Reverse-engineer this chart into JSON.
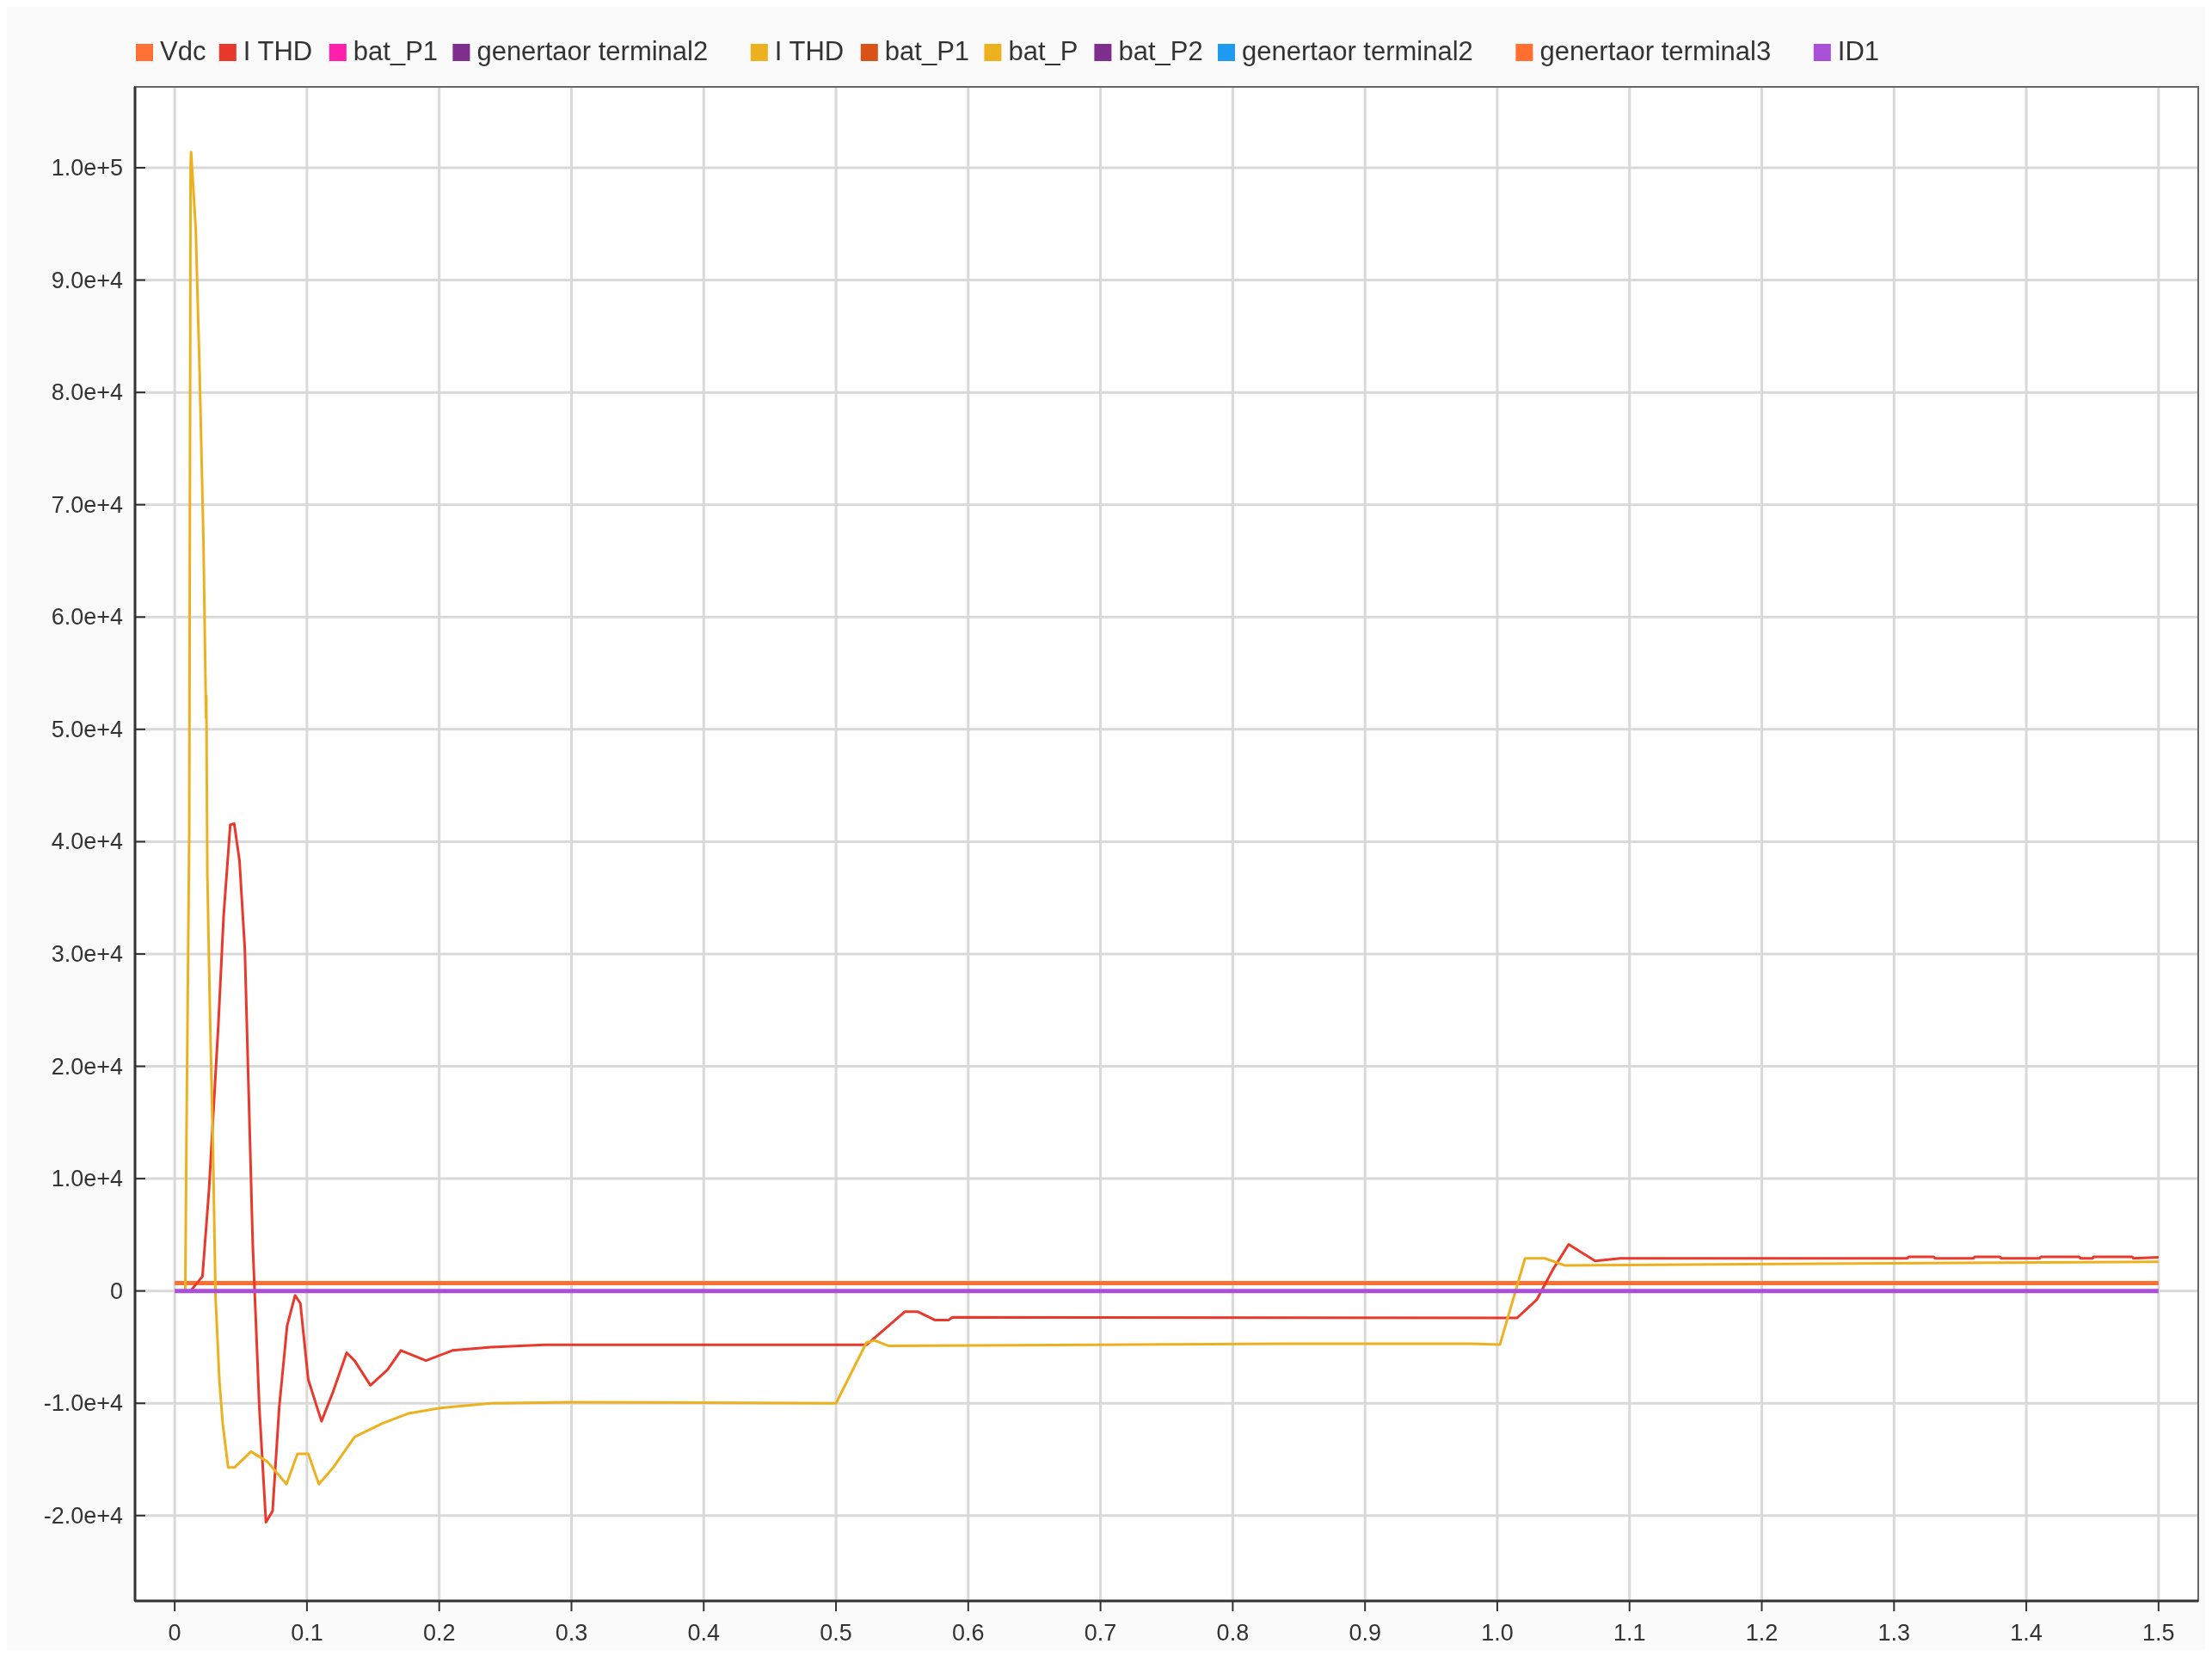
{
  "chart_data": {
    "type": "line",
    "legend": "top",
    "grid": true,
    "xlim": [
      -0.03,
      1.53
    ],
    "ylim": [
      -27600,
      107200
    ],
    "xticks": [
      0,
      0.1,
      0.2,
      0.3,
      0.4,
      0.5,
      0.6,
      0.7,
      0.8,
      0.9,
      {
        "value": 1,
        "label": "1.0"
      },
      1.1,
      1.2,
      1.3,
      1.4,
      1.5
    ],
    "yticks": [
      {
        "value": -20000,
        "label": "-2.0e+4"
      },
      {
        "value": -10000,
        "label": "-1.0e+4"
      },
      0,
      {
        "value": 10000,
        "label": "1.0e+4"
      },
      {
        "value": 20000,
        "label": "2.0e+4"
      },
      {
        "value": 30000,
        "label": "3.0e+4"
      },
      {
        "value": 40000,
        "label": "4.0e+4"
      },
      {
        "value": 50000,
        "label": "5.0e+4"
      },
      {
        "value": 60000,
        "label": "6.0e+4"
      },
      {
        "value": 70000,
        "label": "7.0e+4"
      },
      {
        "value": 80000,
        "label": "8.0e+4"
      },
      {
        "value": 90000,
        "label": "9.0e+4"
      },
      {
        "value": 100000,
        "label": "1.0e+5"
      }
    ],
    "series": [
      {
        "name": "Vdc",
        "color": "#ff7034",
        "x": [
          0,
          1.5
        ],
        "values": [
          700,
          700
        ]
      },
      {
        "name": "I THD",
        "color": "#e8392c",
        "x": [
          0,
          0.012,
          0.021,
          0.026,
          0.033,
          0.037,
          0.042,
          0.045,
          0.049,
          0.053,
          0.056,
          0.059,
          0.064,
          0.069,
          0.074,
          0.079,
          0.085,
          0.091,
          0.095,
          0.101,
          0.111,
          0.12,
          0.13,
          0.136,
          0.148,
          0.161,
          0.171,
          0.19,
          0.21,
          0.239,
          0.28,
          0.523,
          0.552,
          0.562,
          0.575,
          0.585,
          0.588,
          1.015,
          1.03,
          1.042,
          1.054,
          1.063,
          1.074,
          1.093,
          1.31,
          1.311,
          1.33,
          1.331,
          1.36,
          1.361,
          1.38,
          1.381,
          1.41,
          1.411,
          1.44,
          1.441,
          1.45,
          1.451,
          1.48,
          1.481,
          1.5
        ],
        "values": [
          0,
          0,
          1300,
          9100,
          23700,
          33400,
          41500,
          41600,
          38300,
          30500,
          17400,
          4200,
          -10400,
          -20600,
          -19600,
          -10400,
          -3100,
          -400,
          -1100,
          -7900,
          -11600,
          -8900,
          -5500,
          -6200,
          -8400,
          -7000,
          -5300,
          -6200,
          -5300,
          -5000,
          -4800,
          -4800,
          -1850,
          -1850,
          -2600,
          -2600,
          -2340,
          -2400,
          -760,
          1900,
          4150,
          3480,
          2680,
          2900,
          2900,
          3040,
          3040,
          2900,
          2900,
          3040,
          3040,
          2900,
          2900,
          3040,
          3040,
          2900,
          2900,
          3040,
          3040,
          2900,
          3000
        ]
      },
      {
        "name": "bat_P1",
        "color": "#ff1fad"
      },
      {
        "name": "genertaor terminal2",
        "color": "#7e2f8e"
      },
      {
        "name": "I THD",
        "color": "#edb120"
      },
      {
        "name": "bat_P1",
        "color": "#d95319"
      },
      {
        "name": "bat_P",
        "color": "#edb120",
        "x": [
          0,
          0.008,
          0.009,
          0.011,
          0.012,
          0.0124,
          0.0159,
          0.0188,
          0.0217,
          0.0237,
          0.0239,
          0.0247,
          0.0268,
          0.0289,
          0.0309,
          0.0338,
          0.0363,
          0.0404,
          0.0454,
          0.0577,
          0.0701,
          0.0845,
          0.0928,
          0.101,
          0.109,
          0.12,
          0.136,
          0.157,
          0.177,
          0.202,
          0.239,
          0.301,
          0.5,
          0.523,
          0.529,
          0.54,
          0.84,
          0.98,
          1.002,
          1.021,
          1.036,
          1.051,
          1.5
        ],
        "values": [
          0,
          0,
          15000,
          41000,
          100000,
          101400,
          94600,
          82000,
          67000,
          51000,
          53000,
          37000,
          24000,
          13000,
          -600,
          -8000,
          -11800,
          -15700,
          -15700,
          -14300,
          -15200,
          -17200,
          -14500,
          -14500,
          -17200,
          -15700,
          -13000,
          -11800,
          -10900,
          -10400,
          -10000,
          -9900,
          -10000,
          -4600,
          -4400,
          -4900,
          -4700,
          -4700,
          -4780,
          2900,
          2900,
          2280,
          2600
        ]
      },
      {
        "name": "bat_P2",
        "color": "#7e2f8e"
      },
      {
        "name": "genertaor terminal2",
        "color": "#1e9bf0"
      },
      {
        "name": "genertaor terminal3",
        "color": "#ff6f2f"
      },
      {
        "name": "ID1",
        "color": "#a94fd8",
        "x": [
          0,
          1.5
        ],
        "values": [
          0,
          0
        ]
      }
    ]
  }
}
